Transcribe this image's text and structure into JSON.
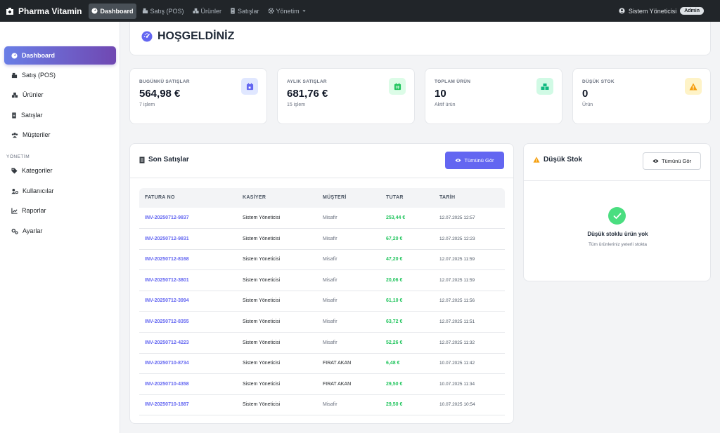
{
  "navbar": {
    "brand": "Pharma Vitamin",
    "items": [
      {
        "label": "Dashboard",
        "icon": "speedometer-icon"
      },
      {
        "label": "Satış (POS)",
        "icon": "cash-register-icon"
      },
      {
        "label": "Ürünler",
        "icon": "boxes-icon"
      },
      {
        "label": "Satışlar",
        "icon": "receipt-icon"
      },
      {
        "label": "Yönetim",
        "icon": "gear-icon"
      }
    ],
    "user": "Sistem Yöneticisi",
    "role_badge": "Admin"
  },
  "sidebar": {
    "items": [
      {
        "label": "Dashboard"
      },
      {
        "label": "Satış (POS)"
      },
      {
        "label": "Ürünler"
      },
      {
        "label": "Satışlar"
      },
      {
        "label": "Müşteriler"
      }
    ],
    "section_heading": "YÖNETİM",
    "admin_items": [
      {
        "label": "Kategoriler"
      },
      {
        "label": "Kullanıcılar"
      },
      {
        "label": "Raporlar"
      },
      {
        "label": "Ayarlar"
      }
    ]
  },
  "welcome": {
    "title": "HOŞGELDİNİZ"
  },
  "stats": [
    {
      "label": "BUGÜNKÜ SATIŞLAR",
      "value": "564,98 €",
      "sub": "7 işlem",
      "icon": "calendar-day-icon",
      "color": "#6366f1"
    },
    {
      "label": "AYLIK SATIŞLAR",
      "value": "681,76 €",
      "sub": "15 işlem",
      "icon": "calendar-month-icon",
      "color": "#22c55e"
    },
    {
      "label": "TOPLAM ÜRÜN",
      "value": "10",
      "sub": "Aktif ürün",
      "icon": "boxes-icon",
      "color": "#10b981"
    },
    {
      "label": "DÜŞÜK STOK",
      "value": "0",
      "sub": "Ürün",
      "icon": "warning-icon",
      "color": "#f59e0b"
    }
  ],
  "recent_sales": {
    "title": "Son Satışlar",
    "button": "Tümünü Gör",
    "columns": [
      "FATURA NO",
      "KASİYER",
      "MÜŞTERİ",
      "TUTAR",
      "TARİH"
    ],
    "rows": [
      {
        "invoice": "INV-20250712-9837",
        "cashier": "Sistem Yöneticisi",
        "customer": "Misafir",
        "amount": "253,44 €",
        "date": "12.07.2025 12:57"
      },
      {
        "invoice": "INV-20250712-9831",
        "cashier": "Sistem Yöneticisi",
        "customer": "Misafir",
        "amount": "67,20 €",
        "date": "12.07.2025 12:23"
      },
      {
        "invoice": "INV-20250712-8168",
        "cashier": "Sistem Yöneticisi",
        "customer": "Misafir",
        "amount": "47,20 €",
        "date": "12.07.2025 11:59"
      },
      {
        "invoice": "INV-20250712-3801",
        "cashier": "Sistem Yöneticisi",
        "customer": "Misafir",
        "amount": "20,06 €",
        "date": "12.07.2025 11:59"
      },
      {
        "invoice": "INV-20250712-3994",
        "cashier": "Sistem Yöneticisi",
        "customer": "Misafir",
        "amount": "61,10 €",
        "date": "12.07.2025 11:56"
      },
      {
        "invoice": "INV-20250712-8355",
        "cashier": "Sistem Yöneticisi",
        "customer": "Misafir",
        "amount": "63,72 €",
        "date": "12.07.2025 11:51"
      },
      {
        "invoice": "INV-20250712-4223",
        "cashier": "Sistem Yöneticisi",
        "customer": "Misafir",
        "amount": "52,26 €",
        "date": "12.07.2025 11:32"
      },
      {
        "invoice": "INV-20250710-8734",
        "cashier": "Sistem Yöneticisi",
        "customer": "FIRAT AKAN",
        "amount": "6,48 €",
        "date": "10.07.2025 11:42"
      },
      {
        "invoice": "INV-20250710-4358",
        "cashier": "Sistem Yöneticisi",
        "customer": "FIRAT AKAN",
        "amount": "29,50 €",
        "date": "10.07.2025 11:34"
      },
      {
        "invoice": "INV-20250710-1887",
        "cashier": "Sistem Yöneticisi",
        "customer": "Misafir",
        "amount": "29,50 €",
        "date": "10.07.2025 10:54"
      }
    ]
  },
  "low_stock": {
    "title": "Düşük Stok",
    "button": "Tümünü Gör",
    "empty_title": "Düşük stoklu ürün yok",
    "empty_sub": "Tüm ürünleriniz yeterli stokta"
  }
}
